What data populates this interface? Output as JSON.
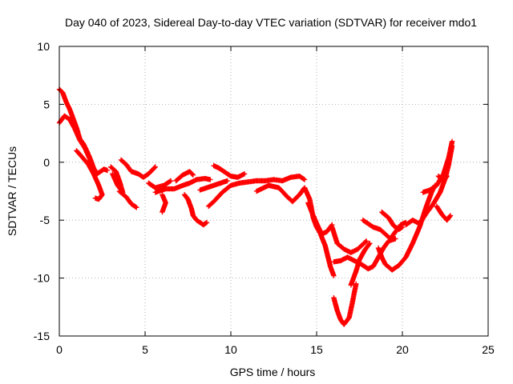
{
  "chart_data": {
    "type": "scatter",
    "title": "Day 040 of 2023, Sidereal Day-to-day VTEC variation (SDTVAR) for receiver mdo1",
    "xlabel": "GPS time / hours",
    "ylabel": "SDTVAR / TECUs",
    "xlim": [
      0,
      25
    ],
    "ylim": [
      -15,
      10
    ],
    "xticks": [
      0,
      5,
      10,
      15,
      20,
      25
    ],
    "yticks": [
      -15,
      -10,
      -5,
      0,
      5,
      10
    ],
    "grid": true,
    "marker": "+",
    "color": "#ff0000",
    "series": [
      {
        "name": "SDTVAR",
        "arcs": [
          [
            [
              0.0,
              3.4
            ],
            [
              0.3,
              4.0
            ],
            [
              0.6,
              3.7
            ],
            [
              0.9,
              2.9
            ],
            [
              1.2,
              1.9
            ],
            [
              1.5,
              1.2
            ],
            [
              1.8,
              0.2
            ],
            [
              2.0,
              -0.7
            ]
          ],
          [
            [
              0.0,
              6.3
            ],
            [
              0.2,
              6.0
            ],
            [
              0.4,
              5.2
            ],
            [
              0.6,
              4.6
            ],
            [
              0.8,
              3.8
            ],
            [
              1.0,
              3.0
            ],
            [
              1.2,
              2.0
            ],
            [
              1.4,
              1.6
            ],
            [
              1.6,
              1.0
            ],
            [
              1.8,
              0.3
            ],
            [
              2.0,
              -0.5
            ],
            [
              2.2,
              -1.0
            ],
            [
              2.4,
              -0.8
            ],
            [
              2.6,
              -0.6
            ],
            [
              2.8,
              -0.7
            ]
          ],
          [
            [
              1.0,
              1.0
            ],
            [
              1.3,
              0.5
            ],
            [
              1.7,
              -0.2
            ],
            [
              2.0,
              -1.0
            ],
            [
              2.3,
              -2.0
            ],
            [
              2.5,
              -2.8
            ],
            [
              2.3,
              -3.2
            ],
            [
              2.1,
              -3.1
            ]
          ],
          [
            [
              3.1,
              -1.0
            ],
            [
              3.4,
              -2.0
            ],
            [
              3.7,
              -2.6
            ],
            [
              3.5,
              -1.6
            ],
            [
              3.3,
              -0.8
            ],
            [
              3.0,
              -0.4
            ]
          ],
          [
            [
              3.5,
              -2.5
            ],
            [
              3.9,
              -3.0
            ],
            [
              4.2,
              -3.6
            ],
            [
              4.5,
              -3.9
            ]
          ],
          [
            [
              3.6,
              0.2
            ],
            [
              3.9,
              -0.2
            ],
            [
              4.2,
              -0.8
            ],
            [
              4.6,
              -1.0
            ],
            [
              4.9,
              -1.3
            ],
            [
              5.2,
              -1.0
            ],
            [
              5.6,
              -0.4
            ]
          ],
          [
            [
              5.2,
              -1.8
            ],
            [
              5.6,
              -2.2
            ],
            [
              6.1,
              -2.0
            ],
            [
              6.5,
              -1.6
            ]
          ],
          [
            [
              6.0,
              -2.8
            ],
            [
              6.2,
              -3.5
            ],
            [
              6.0,
              -4.3
            ]
          ],
          [
            [
              5.6,
              -2.6
            ],
            [
              6.2,
              -2.3
            ],
            [
              6.7,
              -2.3
            ],
            [
              7.2,
              -2.0
            ],
            [
              7.6,
              -1.8
            ],
            [
              8.0,
              -1.5
            ],
            [
              8.5,
              -1.4
            ],
            [
              8.8,
              -1.5
            ]
          ],
          [
            [
              6.8,
              -1.6
            ],
            [
              7.2,
              -1.1
            ],
            [
              7.6,
              -0.8
            ],
            [
              7.8,
              -1.1
            ]
          ],
          [
            [
              7.3,
              -2.8
            ],
            [
              7.5,
              -3.2
            ],
            [
              7.7,
              -4.0
            ],
            [
              7.8,
              -4.6
            ],
            [
              8.0,
              -5.0
            ],
            [
              8.2,
              -5.2
            ],
            [
              8.4,
              -5.4
            ],
            [
              8.6,
              -5.2
            ]
          ],
          [
            [
              8.2,
              -2.4
            ],
            [
              8.6,
              -2.2
            ],
            [
              9.0,
              -2.0
            ],
            [
              9.4,
              -1.8
            ],
            [
              9.8,
              -1.6
            ]
          ],
          [
            [
              8.7,
              -3.8
            ],
            [
              9.0,
              -3.4
            ],
            [
              9.5,
              -2.6
            ],
            [
              10.0,
              -2.0
            ],
            [
              10.5,
              -1.8
            ],
            [
              11.0,
              -1.7
            ],
            [
              11.5,
              -1.6
            ],
            [
              12.0,
              -1.6
            ],
            [
              12.5,
              -1.5
            ],
            [
              13.0,
              -1.6
            ],
            [
              13.5,
              -1.3
            ],
            [
              14.0,
              -1.2
            ],
            [
              14.3,
              -1.5
            ]
          ],
          [
            [
              9.0,
              -0.3
            ],
            [
              9.3,
              -0.5
            ],
            [
              9.7,
              -0.9
            ],
            [
              10.0,
              -1.2
            ],
            [
              10.4,
              -1.3
            ],
            [
              10.8,
              -1.0
            ]
          ],
          [
            [
              11.5,
              -2.5
            ],
            [
              12.2,
              -2.0
            ],
            [
              12.8,
              -2.2
            ],
            [
              13.3,
              -3.0
            ],
            [
              13.6,
              -3.4
            ],
            [
              14.0,
              -2.8
            ],
            [
              14.3,
              -2.2
            ]
          ],
          [
            [
              14.3,
              -2.2
            ],
            [
              14.6,
              -3.2
            ],
            [
              14.8,
              -4.8
            ],
            [
              15.0,
              -5.6
            ],
            [
              15.2,
              -6.1
            ],
            [
              15.5,
              -7.2
            ],
            [
              15.8,
              -9.0
            ],
            [
              16.0,
              -9.8
            ]
          ],
          [
            [
              14.5,
              -3.5
            ],
            [
              14.8,
              -4.6
            ],
            [
              15.1,
              -5.6
            ],
            [
              15.3,
              -6.2
            ],
            [
              15.6,
              -6.0
            ],
            [
              15.9,
              -5.4
            ]
          ],
          [
            [
              15.9,
              -5.6
            ],
            [
              16.2,
              -7.0
            ],
            [
              16.6,
              -7.5
            ],
            [
              17.0,
              -7.8
            ],
            [
              17.4,
              -7.5
            ],
            [
              17.9,
              -6.8
            ]
          ],
          [
            [
              16.0,
              -8.6
            ],
            [
              16.4,
              -8.5
            ],
            [
              16.8,
              -8.2
            ],
            [
              17.2,
              -8.5
            ],
            [
              17.6,
              -8.8
            ],
            [
              18.0,
              -9.2
            ],
            [
              18.3,
              -9.0
            ],
            [
              18.6,
              -8.2
            ],
            [
              18.9,
              -7.4
            ],
            [
              19.2,
              -6.8
            ],
            [
              19.6,
              -6.6
            ]
          ],
          [
            [
              16.0,
              -11.7
            ],
            [
              16.2,
              -12.8
            ],
            [
              16.4,
              -13.6
            ],
            [
              16.6,
              -14.0
            ],
            [
              16.9,
              -13.4
            ],
            [
              17.1,
              -12.0
            ],
            [
              17.3,
              -10.5
            ]
          ],
          [
            [
              17.0,
              -10.6
            ],
            [
              17.3,
              -9.4
            ],
            [
              17.5,
              -8.4
            ],
            [
              17.8,
              -7.6
            ],
            [
              18.1,
              -7.0
            ]
          ],
          [
            [
              17.7,
              -5.0
            ],
            [
              18.0,
              -5.3
            ],
            [
              18.3,
              -5.6
            ],
            [
              18.7,
              -5.8
            ],
            [
              19.0,
              -6.2
            ],
            [
              19.3,
              -6.6
            ],
            [
              19.6,
              -6.0
            ],
            [
              19.9,
              -5.4
            ],
            [
              20.2,
              -5.2
            ]
          ],
          [
            [
              18.8,
              -4.3
            ],
            [
              19.2,
              -4.8
            ],
            [
              19.5,
              -5.5
            ],
            [
              19.8,
              -5.8
            ],
            [
              20.0,
              -5.6
            ]
          ],
          [
            [
              18.6,
              -7.4
            ],
            [
              18.8,
              -8.2
            ],
            [
              19.0,
              -8.8
            ],
            [
              19.4,
              -9.3
            ],
            [
              19.8,
              -8.9
            ],
            [
              20.2,
              -8.2
            ],
            [
              20.6,
              -7.0
            ],
            [
              21.0,
              -5.6
            ],
            [
              21.4,
              -3.8
            ],
            [
              21.7,
              -2.6
            ],
            [
              21.9,
              -2.0
            ]
          ],
          [
            [
              20.2,
              -5.4
            ],
            [
              20.6,
              -5.0
            ],
            [
              21.0,
              -5.3
            ],
            [
              21.4,
              -4.4
            ],
            [
              21.8,
              -3.6
            ],
            [
              22.2,
              -2.6
            ],
            [
              22.5,
              -1.4
            ],
            [
              22.7,
              -0.2
            ],
            [
              22.9,
              1.4
            ]
          ],
          [
            [
              21.2,
              -2.6
            ],
            [
              21.6,
              -2.4
            ],
            [
              22.0,
              -2.0
            ],
            [
              22.4,
              -1.0
            ],
            [
              22.7,
              0.4
            ],
            [
              22.9,
              1.8
            ]
          ],
          [
            [
              22.0,
              -3.8
            ],
            [
              22.3,
              -4.5
            ],
            [
              22.6,
              -5.0
            ],
            [
              22.8,
              -4.6
            ]
          ],
          [
            [
              22.1,
              -1.2
            ],
            [
              22.4,
              -1.6
            ],
            [
              22.6,
              -1.2
            ]
          ]
        ]
      }
    ]
  }
}
